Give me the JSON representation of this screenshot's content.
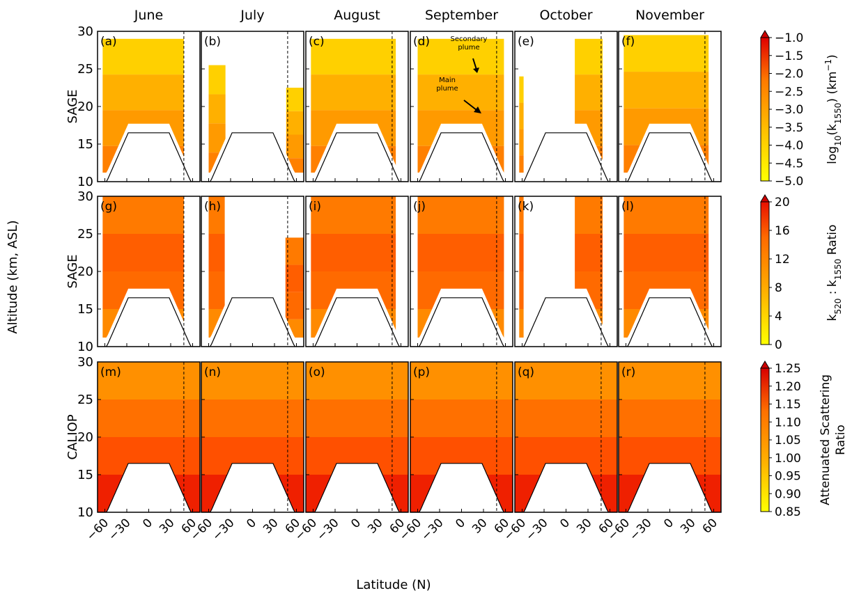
{
  "chart_data": {
    "type": "heatmap",
    "months": [
      "June",
      "July",
      "August",
      "September",
      "October",
      "November"
    ],
    "rows": [
      {
        "instrument": "SAGE",
        "panel_labels": [
          "(a)",
          "(b)",
          "(c)",
          "(d)",
          "(e)",
          "(f)"
        ],
        "colorbar": {
          "label_main": "log",
          "label_sub": "10",
          "label_rest": "(k",
          "label_sub2": "1550",
          "label_end": ") (km",
          "label_sup": "−1",
          "label_close": ")",
          "ticks": [
            "−1.0",
            "−1.5",
            "−2.0",
            "−2.5",
            "−3.0",
            "−3.5",
            "−4.0",
            "−4.5",
            "−5.0"
          ],
          "range": [
            -5.0,
            -1.0
          ],
          "extend": "max"
        }
      },
      {
        "instrument": "SAGE",
        "panel_labels": [
          "(g)",
          "(h)",
          "(i)",
          "(j)",
          "(k)",
          "(l)"
        ],
        "colorbar": {
          "label_k": "k",
          "label_sub1": "520",
          "label_colon": " : k",
          "label_sub2": "1550",
          "label_end": " Ratio",
          "ticks": [
            "20",
            "16",
            "12",
            "8",
            "4",
            "0"
          ],
          "range": [
            0,
            20
          ],
          "extend": "max"
        }
      },
      {
        "instrument": "CALIOP",
        "panel_labels": [
          "(m)",
          "(n)",
          "(o)",
          "(p)",
          "(q)",
          "(r)"
        ],
        "colorbar": {
          "label_line1": "Attenuated Scattering",
          "label_line2": "Ratio",
          "ticks": [
            "1.25",
            "1.20",
            "1.15",
            "1.10",
            "1.05",
            "1.00",
            "0.95",
            "0.90",
            "0.85"
          ],
          "range": [
            0.85,
            1.25
          ],
          "extend": "max"
        }
      }
    ],
    "y_axis": {
      "label": "Altitude (km, ASL)",
      "ticks": [
        "10",
        "15",
        "20",
        "25",
        "30"
      ],
      "range": [
        10,
        30
      ]
    },
    "x_axis": {
      "label": "Latitude (N)",
      "ticks": [
        "−60",
        "−30",
        "0",
        "30",
        "60"
      ],
      "range": [
        -70,
        70
      ]
    },
    "annotations": [
      {
        "panel": "(d)",
        "text_line1": "Secondary",
        "text_line2": "plume"
      },
      {
        "panel": "(d)",
        "text_line1": "Main",
        "text_line2": "plume"
      }
    ],
    "reference_line_latitude": 48,
    "tropopause_altitude_peak_km": 16.5,
    "colors": {
      "yellow": "#ffff00",
      "orange": "#ff8c00",
      "red": "#e62000",
      "deep_red": "#cc0000"
    }
  }
}
